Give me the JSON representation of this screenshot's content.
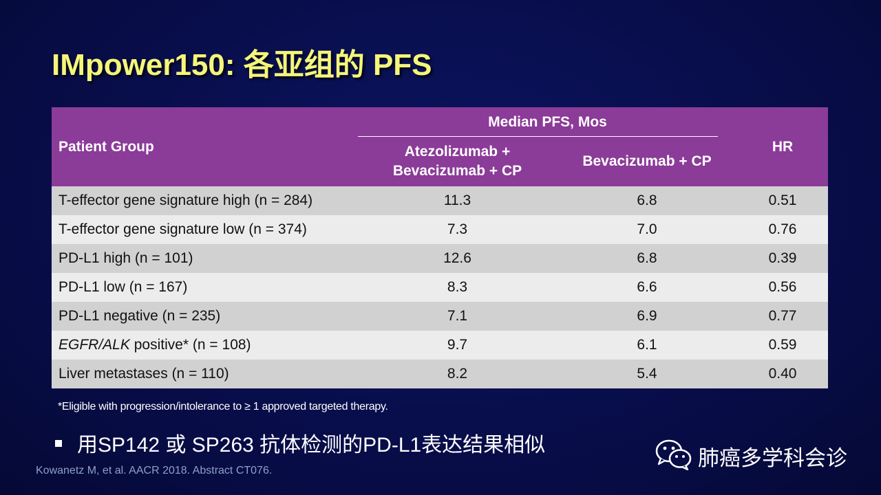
{
  "slide": {
    "title": "IMpower150: 各亚组的 PFS",
    "table": {
      "header": {
        "group": "Patient Group",
        "median_pfs": "Median PFS, Mos",
        "arm_a": "Atezolizumab + Bevacizumab + CP",
        "arm_a_line1": "Atezolizumab +",
        "arm_a_line2": "Bevacizumab + CP",
        "arm_b": "Bevacizumab + CP",
        "hr": "HR"
      },
      "rows": [
        {
          "group": "T-effector gene signature high (n = 284)",
          "arm_a": "11.3",
          "arm_b": "6.8",
          "hr": "0.51"
        },
        {
          "group": "T-effector gene signature low (n = 374)",
          "arm_a": "7.3",
          "arm_b": "7.0",
          "hr": "0.76"
        },
        {
          "group": "PD-L1 high (n = 101)",
          "arm_a": "12.6",
          "arm_b": "6.8",
          "hr": "0.39"
        },
        {
          "group": "PD-L1 low (n = 167)",
          "arm_a": "8.3",
          "arm_b": "6.6",
          "hr": "0.56"
        },
        {
          "group": "PD-L1 negative (n = 235)",
          "arm_a": "7.1",
          "arm_b": "6.9",
          "hr": "0.77"
        },
        {
          "group_italic": "EGFR/ALK",
          "group_rest": " positive* (n = 108)",
          "arm_a": "9.7",
          "arm_b": "6.1",
          "hr": "0.59"
        },
        {
          "group": "Liver metastases (n = 110)",
          "arm_a": "8.2",
          "arm_b": "5.4",
          "hr": "0.40"
        }
      ]
    },
    "footnote": "*Eligible with progression/intolerance to ≥ 1 approved targeted therapy.",
    "bullet": "用SP142 或 SP263 抗体检测的PD-L1表达结果相似",
    "reference": "Kowanetz M, et al. AACR 2018. Abstract CT076.",
    "watermark": {
      "icon": "wechat-icon",
      "text": "肺癌多学科会诊"
    }
  },
  "colors": {
    "background": "#070c45",
    "title": "#f5f57a",
    "header": "#8b3b98",
    "row_dark": "#d1d1d1",
    "row_light": "#ececec"
  }
}
